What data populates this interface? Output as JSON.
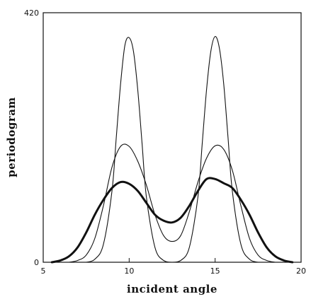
{
  "chart_data": {
    "type": "line",
    "title": "",
    "xlabel": "incident angle",
    "ylabel": "periodogram",
    "xlim": [
      5,
      20
    ],
    "ylim": [
      0,
      420
    ],
    "x_ticks": [
      "5",
      "10",
      "15",
      "20"
    ],
    "y_ticks": [
      "0",
      "420"
    ],
    "grid": false,
    "legend": "none",
    "series": [
      {
        "x": [
          7.5,
          8.0,
          8.5,
          9.0,
          9.25,
          9.5,
          9.75,
          10.0,
          10.25,
          10.5,
          10.75,
          11.0,
          11.5,
          12.0,
          12.5,
          13.0,
          13.5,
          14.0,
          14.25,
          14.5,
          14.75,
          15.0,
          15.25,
          15.5,
          15.75,
          16.0,
          16.5,
          17.0,
          17.5
        ],
        "values": [
          0,
          5,
          30,
          120,
          210,
          300,
          365,
          378,
          355,
          290,
          200,
          110,
          25,
          3,
          0,
          3,
          25,
          110,
          200,
          290,
          355,
          380,
          360,
          300,
          210,
          120,
          30,
          5,
          0
        ],
        "color": "#111111",
        "stroke": "thin"
      },
      {
        "x": [
          6.5,
          7.0,
          7.5,
          8.0,
          8.5,
          9.0,
          9.5,
          10.0,
          10.5,
          11.0,
          11.5,
          12.0,
          12.5,
          13.0,
          13.5,
          14.0,
          14.5,
          15.0,
          15.5,
          16.0,
          16.5,
          17.0,
          17.5,
          18.0,
          18.5
        ],
        "values": [
          0,
          3,
          12,
          40,
          95,
          160,
          195,
          195,
          170,
          130,
          80,
          45,
          35,
          45,
          85,
          135,
          175,
          196,
          190,
          155,
          95,
          40,
          12,
          3,
          0
        ],
        "color": "#111111",
        "stroke": "thin"
      },
      {
        "x": [
          5.5,
          6.0,
          6.5,
          7.0,
          7.5,
          8.0,
          8.5,
          9.0,
          9.5,
          10.0,
          10.5,
          11.0,
          11.5,
          12.0,
          12.5,
          13.0,
          13.5,
          14.0,
          14.5,
          15.0,
          15.5,
          16.0,
          16.5,
          17.0,
          17.5,
          18.0,
          18.5,
          19.0,
          19.5
        ],
        "values": [
          0,
          3,
          10,
          25,
          50,
          80,
          105,
          125,
          135,
          132,
          120,
          100,
          80,
          70,
          67,
          75,
          95,
          120,
          140,
          140,
          133,
          125,
          105,
          80,
          50,
          25,
          10,
          3,
          0
        ],
        "color": "#111111",
        "stroke": "thick"
      }
    ]
  }
}
